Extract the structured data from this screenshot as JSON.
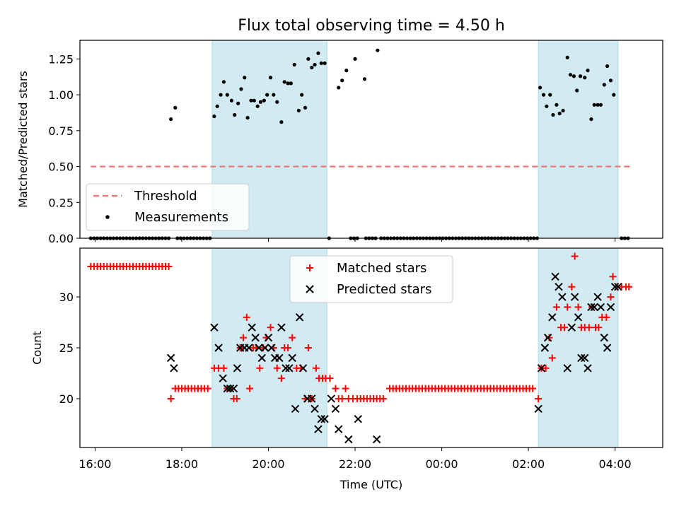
{
  "chart_data": {
    "title": "Flux total observing time = 4.50 h",
    "type": "scatter",
    "x_tick_labels": [
      "16:00",
      "18:00",
      "20:00",
      "22:00",
      "00:00",
      "02:00",
      "04:00"
    ],
    "x_ticks_hours": [
      16,
      18,
      20,
      22,
      24,
      26,
      28
    ],
    "xlabel": "Time (UTC)",
    "xlim_hours": [
      15.65,
      29.1
    ],
    "shaded_intervals_hours": [
      [
        18.7,
        21.35
      ],
      [
        26.23,
        28.07
      ]
    ],
    "colors": {
      "shade": "#add8e6",
      "threshold": "#f07070",
      "measure": "#000000",
      "matched": "#ff0000",
      "predicted": "#000000"
    },
    "panels": [
      {
        "ylabel": "Matched/Predicted stars",
        "ylim": [
          0,
          1.38
        ],
        "y_ticks": [
          0,
          0.25,
          0.5,
          0.75,
          1.0,
          1.25
        ],
        "y_tick_labels": [
          "0.00",
          "0.25",
          "0.50",
          "0.75",
          "1.00",
          "1.25"
        ],
        "legend": {
          "threshold_label": "Threshold",
          "measure_label": "Measurements"
        },
        "threshold": {
          "value": 0.5,
          "x_range_hours": [
            15.9,
            28.35
          ]
        },
        "measurements": [
          {
            "t": 17.75,
            "v": 0.83
          },
          {
            "t": 17.85,
            "v": 0.91
          },
          {
            "t": 18.75,
            "v": 0.85
          },
          {
            "t": 18.82,
            "v": 0.92
          },
          {
            "t": 18.9,
            "v": 1.0
          },
          {
            "t": 18.97,
            "v": 1.09
          },
          {
            "t": 19.05,
            "v": 1.0
          },
          {
            "t": 19.15,
            "v": 0.96
          },
          {
            "t": 19.22,
            "v": 0.86
          },
          {
            "t": 19.3,
            "v": 0.94
          },
          {
            "t": 19.37,
            "v": 1.04
          },
          {
            "t": 19.45,
            "v": 1.12
          },
          {
            "t": 19.52,
            "v": 0.84
          },
          {
            "t": 19.6,
            "v": 0.96
          },
          {
            "t": 19.67,
            "v": 0.96
          },
          {
            "t": 19.75,
            "v": 0.92
          },
          {
            "t": 19.82,
            "v": 0.95
          },
          {
            "t": 19.9,
            "v": 0.96
          },
          {
            "t": 19.97,
            "v": 1.0
          },
          {
            "t": 20.05,
            "v": 1.12
          },
          {
            "t": 20.12,
            "v": 1.0
          },
          {
            "t": 20.2,
            "v": 0.95
          },
          {
            "t": 20.3,
            "v": 0.81
          },
          {
            "t": 20.37,
            "v": 1.09
          },
          {
            "t": 20.45,
            "v": 1.08
          },
          {
            "t": 20.52,
            "v": 1.08
          },
          {
            "t": 20.6,
            "v": 1.21
          },
          {
            "t": 20.7,
            "v": 0.89
          },
          {
            "t": 20.77,
            "v": 1.0
          },
          {
            "t": 20.85,
            "v": 0.91
          },
          {
            "t": 20.92,
            "v": 1.25
          },
          {
            "t": 21.0,
            "v": 1.19
          },
          {
            "t": 21.07,
            "v": 1.21
          },
          {
            "t": 21.15,
            "v": 1.29
          },
          {
            "t": 21.22,
            "v": 1.22
          },
          {
            "t": 21.3,
            "v": 1.22
          },
          {
            "t": 21.62,
            "v": 1.05
          },
          {
            "t": 21.7,
            "v": 1.1
          },
          {
            "t": 21.8,
            "v": 1.17
          },
          {
            "t": 22.0,
            "v": 1.25
          },
          {
            "t": 22.22,
            "v": 1.11
          },
          {
            "t": 22.52,
            "v": 1.31
          },
          {
            "t": 26.27,
            "v": 1.05
          },
          {
            "t": 26.35,
            "v": 1.0
          },
          {
            "t": 26.42,
            "v": 0.92
          },
          {
            "t": 26.5,
            "v": 1.0
          },
          {
            "t": 26.57,
            "v": 0.86
          },
          {
            "t": 26.65,
            "v": 0.93
          },
          {
            "t": 26.72,
            "v": 0.87
          },
          {
            "t": 26.8,
            "v": 0.89
          },
          {
            "t": 26.9,
            "v": 1.26
          },
          {
            "t": 26.97,
            "v": 1.14
          },
          {
            "t": 27.05,
            "v": 1.13
          },
          {
            "t": 27.12,
            "v": 1.03
          },
          {
            "t": 27.2,
            "v": 1.13
          },
          {
            "t": 27.3,
            "v": 1.12
          },
          {
            "t": 27.37,
            "v": 1.17
          },
          {
            "t": 27.45,
            "v": 0.83
          },
          {
            "t": 27.52,
            "v": 0.93
          },
          {
            "t": 27.6,
            "v": 0.93
          },
          {
            "t": 27.67,
            "v": 0.93
          },
          {
            "t": 27.75,
            "v": 1.07
          },
          {
            "t": 27.82,
            "v": 1.2
          },
          {
            "t": 27.9,
            "v": 1.1
          },
          {
            "t": 27.97,
            "v": 1.0
          }
        ],
        "zero_ranges_hours": [
          [
            15.9,
            17.7
          ],
          [
            17.9,
            18.65
          ],
          [
            21.4,
            21.45
          ],
          [
            21.9,
            22.05
          ],
          [
            22.25,
            22.5
          ],
          [
            22.6,
            26.2
          ],
          [
            28.15,
            28.35
          ]
        ],
        "zero_step_hours": 0.075
      },
      {
        "ylabel": "Count",
        "ylim": [
          15.2,
          34.8
        ],
        "y_ticks": [
          20,
          25,
          30
        ],
        "y_tick_labels": [
          "20",
          "25",
          "30"
        ],
        "legend": {
          "matched_label": "Matched stars",
          "predicted_label": "Predicted stars"
        },
        "matched_runs": [
          {
            "from": 15.9,
            "to": 17.7,
            "value": 33,
            "step": 0.075
          },
          {
            "from": 17.85,
            "to": 18.65,
            "value": 21,
            "step": 0.075
          },
          {
            "from": 22.8,
            "to": 26.15,
            "value": 21,
            "step": 0.075
          },
          {
            "from": 22.05,
            "to": 22.72,
            "value": 20,
            "step": 0.075
          }
        ],
        "matched": [
          {
            "t": 17.75,
            "v": 20
          },
          {
            "t": 18.75,
            "v": 23
          },
          {
            "t": 18.85,
            "v": 23
          },
          {
            "t": 18.97,
            "v": 23
          },
          {
            "t": 19.05,
            "v": 21
          },
          {
            "t": 19.12,
            "v": 21
          },
          {
            "t": 19.2,
            "v": 20
          },
          {
            "t": 19.27,
            "v": 20
          },
          {
            "t": 19.35,
            "v": 25
          },
          {
            "t": 19.42,
            "v": 26
          },
          {
            "t": 19.5,
            "v": 28
          },
          {
            "t": 19.57,
            "v": 21
          },
          {
            "t": 19.65,
            "v": 25
          },
          {
            "t": 19.72,
            "v": 25
          },
          {
            "t": 19.8,
            "v": 23
          },
          {
            "t": 19.88,
            "v": 25
          },
          {
            "t": 19.95,
            "v": 26
          },
          {
            "t": 20.05,
            "v": 27
          },
          {
            "t": 20.12,
            "v": 25
          },
          {
            "t": 20.2,
            "v": 23
          },
          {
            "t": 20.3,
            "v": 22
          },
          {
            "t": 20.37,
            "v": 25
          },
          {
            "t": 20.45,
            "v": 25
          },
          {
            "t": 20.55,
            "v": 26
          },
          {
            "t": 20.65,
            "v": 23
          },
          {
            "t": 20.75,
            "v": 23
          },
          {
            "t": 20.85,
            "v": 20
          },
          {
            "t": 20.92,
            "v": 25
          },
          {
            "t": 21.0,
            "v": 20
          },
          {
            "t": 21.1,
            "v": 23
          },
          {
            "t": 21.17,
            "v": 22
          },
          {
            "t": 21.25,
            "v": 22
          },
          {
            "t": 21.32,
            "v": 22
          },
          {
            "t": 21.42,
            "v": 22
          },
          {
            "t": 21.55,
            "v": 21
          },
          {
            "t": 21.62,
            "v": 20
          },
          {
            "t": 21.7,
            "v": 20
          },
          {
            "t": 21.78,
            "v": 21
          },
          {
            "t": 21.85,
            "v": 20
          },
          {
            "t": 21.95,
            "v": 20
          },
          {
            "t": 26.23,
            "v": 20
          },
          {
            "t": 26.3,
            "v": 23
          },
          {
            "t": 26.4,
            "v": 23
          },
          {
            "t": 26.48,
            "v": 26
          },
          {
            "t": 26.55,
            "v": 24
          },
          {
            "t": 26.65,
            "v": 29
          },
          {
            "t": 26.75,
            "v": 27
          },
          {
            "t": 26.83,
            "v": 27
          },
          {
            "t": 26.9,
            "v": 29
          },
          {
            "t": 27.0,
            "v": 31
          },
          {
            "t": 27.07,
            "v": 34
          },
          {
            "t": 27.15,
            "v": 29
          },
          {
            "t": 27.22,
            "v": 27
          },
          {
            "t": 27.3,
            "v": 27
          },
          {
            "t": 27.4,
            "v": 27
          },
          {
            "t": 27.47,
            "v": 29
          },
          {
            "t": 27.55,
            "v": 27
          },
          {
            "t": 27.62,
            "v": 27
          },
          {
            "t": 27.7,
            "v": 28
          },
          {
            "t": 27.8,
            "v": 28
          },
          {
            "t": 27.9,
            "v": 30
          },
          {
            "t": 27.95,
            "v": 32
          },
          {
            "t": 28.05,
            "v": 31
          },
          {
            "t": 28.15,
            "v": 31
          },
          {
            "t": 28.25,
            "v": 31
          },
          {
            "t": 28.32,
            "v": 31
          }
        ],
        "predicted": [
          {
            "t": 17.75,
            "v": 24
          },
          {
            "t": 17.82,
            "v": 23
          },
          {
            "t": 18.75,
            "v": 27
          },
          {
            "t": 18.85,
            "v": 25
          },
          {
            "t": 18.95,
            "v": 22
          },
          {
            "t": 19.05,
            "v": 21
          },
          {
            "t": 19.12,
            "v": 21
          },
          {
            "t": 19.2,
            "v": 21
          },
          {
            "t": 19.28,
            "v": 23
          },
          {
            "t": 19.35,
            "v": 25
          },
          {
            "t": 19.45,
            "v": 25
          },
          {
            "t": 19.55,
            "v": 25
          },
          {
            "t": 19.62,
            "v": 27
          },
          {
            "t": 19.7,
            "v": 26
          },
          {
            "t": 19.78,
            "v": 25
          },
          {
            "t": 19.85,
            "v": 24
          },
          {
            "t": 19.92,
            "v": 25
          },
          {
            "t": 20.0,
            "v": 26
          },
          {
            "t": 20.07,
            "v": 25
          },
          {
            "t": 20.15,
            "v": 24
          },
          {
            "t": 20.25,
            "v": 24
          },
          {
            "t": 20.3,
            "v": 27
          },
          {
            "t": 20.4,
            "v": 23
          },
          {
            "t": 20.48,
            "v": 23
          },
          {
            "t": 20.55,
            "v": 24
          },
          {
            "t": 20.62,
            "v": 19
          },
          {
            "t": 20.72,
            "v": 28
          },
          {
            "t": 20.8,
            "v": 23
          },
          {
            "t": 20.9,
            "v": 20
          },
          {
            "t": 21.0,
            "v": 20
          },
          {
            "t": 21.07,
            "v": 19
          },
          {
            "t": 21.15,
            "v": 17
          },
          {
            "t": 21.22,
            "v": 18
          },
          {
            "t": 21.3,
            "v": 18
          },
          {
            "t": 21.45,
            "v": 20
          },
          {
            "t": 21.55,
            "v": 19
          },
          {
            "t": 21.62,
            "v": 17
          },
          {
            "t": 21.85,
            "v": 16
          },
          {
            "t": 22.07,
            "v": 18
          },
          {
            "t": 22.5,
            "v": 16
          },
          {
            "t": 26.23,
            "v": 19
          },
          {
            "t": 26.3,
            "v": 23
          },
          {
            "t": 26.38,
            "v": 25
          },
          {
            "t": 26.45,
            "v": 26
          },
          {
            "t": 26.55,
            "v": 28
          },
          {
            "t": 26.62,
            "v": 32
          },
          {
            "t": 26.7,
            "v": 31
          },
          {
            "t": 26.78,
            "v": 30
          },
          {
            "t": 26.9,
            "v": 23
          },
          {
            "t": 27.0,
            "v": 27
          },
          {
            "t": 27.07,
            "v": 30
          },
          {
            "t": 27.15,
            "v": 28
          },
          {
            "t": 27.22,
            "v": 24
          },
          {
            "t": 27.3,
            "v": 24
          },
          {
            "t": 27.37,
            "v": 23
          },
          {
            "t": 27.45,
            "v": 29
          },
          {
            "t": 27.52,
            "v": 29
          },
          {
            "t": 27.6,
            "v": 30
          },
          {
            "t": 27.67,
            "v": 29
          },
          {
            "t": 27.75,
            "v": 26
          },
          {
            "t": 27.82,
            "v": 25
          },
          {
            "t": 27.9,
            "v": 29
          },
          {
            "t": 28.0,
            "v": 31
          },
          {
            "t": 28.07,
            "v": 31
          }
        ]
      }
    ]
  }
}
